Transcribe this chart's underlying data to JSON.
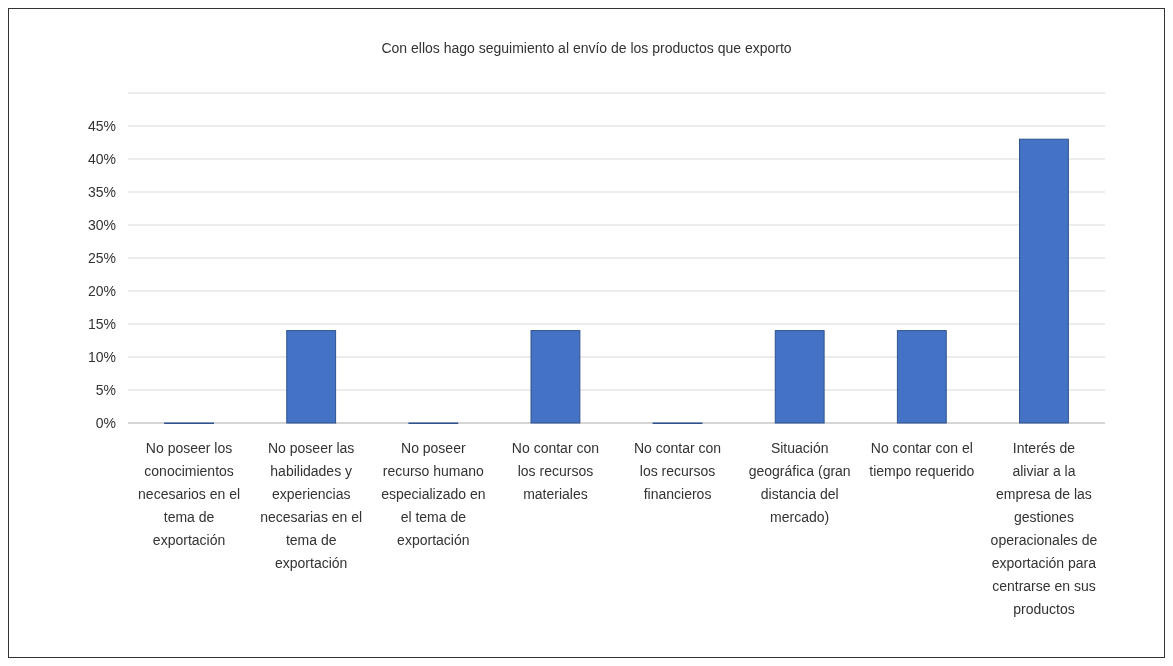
{
  "chart_data": {
    "type": "bar",
    "title": "Con ellos hago seguimiento al envío de los productos que exporto",
    "categories": [
      "No poseer los conocimientos necesarios en el tema de exportación",
      "No poseer las habilidades y experiencias necesarias en el tema de exportación",
      "No poseer recurso humano especializado en el tema de exportación",
      "No contar con los recursos materiales",
      "No contar con los recursos financieros",
      "Situación geográfica (gran distancia del mercado)",
      "No contar con el tiempo requerido",
      "Interés de aliviar a la empresa de las gestiones operacionales de exportación para centrarse en sus productos"
    ],
    "values": [
      0,
      0.14,
      0,
      0.14,
      0,
      0.14,
      0.14,
      0.43
    ],
    "color": "#4472c4",
    "ylim": [
      0,
      0.5
    ],
    "yticks": [
      {
        "value": 0,
        "label": "0%"
      },
      {
        "value": 0.05,
        "label": "5%"
      },
      {
        "value": 0.1,
        "label": "10%"
      },
      {
        "value": 0.15,
        "label": "15%"
      },
      {
        "value": 0.2,
        "label": "20%"
      },
      {
        "value": 0.25,
        "label": "25%"
      },
      {
        "value": 0.3,
        "label": "30%"
      },
      {
        "value": 0.35,
        "label": "35%"
      },
      {
        "value": 0.4,
        "label": "40%"
      },
      {
        "value": 0.45,
        "label": "45%"
      },
      {
        "value": 0.5,
        "label": null
      }
    ],
    "grid": "y"
  }
}
